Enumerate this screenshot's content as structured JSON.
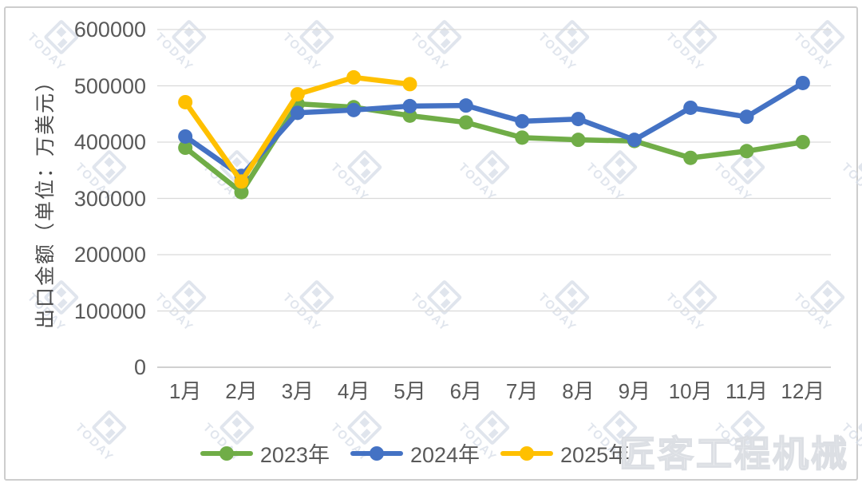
{
  "chart_data": {
    "type": "line",
    "title": "",
    "xlabel": "",
    "ylabel": "出口金额（单位：万美元）",
    "categories": [
      "1月",
      "2月",
      "3月",
      "4月",
      "5月",
      "6月",
      "7月",
      "8月",
      "9月",
      "10月",
      "11月",
      "12月"
    ],
    "series": [
      {
        "name": "2023年",
        "color": "#70AD47",
        "values": [
          390000,
          311000,
          468000,
          462000,
          447000,
          435000,
          408000,
          404000,
          402000,
          372000,
          384000,
          400000
        ]
      },
      {
        "name": "2024年",
        "color": "#4472C4",
        "values": [
          410000,
          340000,
          452000,
          457000,
          464000,
          465000,
          437000,
          441000,
          404000,
          461000,
          445000,
          505000
        ]
      },
      {
        "name": "2025年",
        "color": "#FFC000",
        "values": [
          471000,
          330000,
          485000,
          515000,
          503000
        ]
      }
    ],
    "ylim": [
      0,
      600000
    ],
    "ytick_step": 100000,
    "ytick_labels": [
      "0",
      "100000",
      "200000",
      "300000",
      "400000",
      "500000",
      "600000"
    ],
    "grid": true,
    "legend_position": "bottom"
  },
  "watermark": {
    "tile_text": "TODAY",
    "corner_text": "匠客工程机械"
  }
}
